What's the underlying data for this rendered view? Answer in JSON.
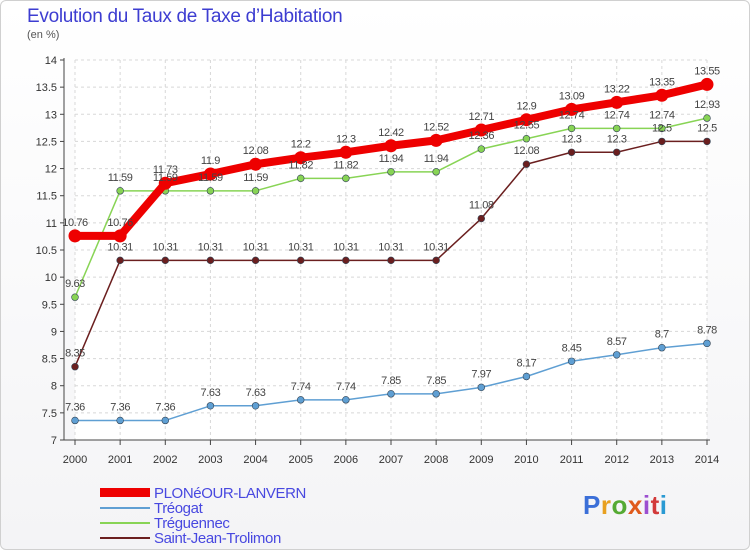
{
  "header": {
    "title": "Evolution du Taux de Taxe d’Habitation",
    "subtitle": "(en %)"
  },
  "logo": {
    "text": "Proxiti",
    "colors": [
      "#3b6fd8",
      "#e8a020",
      "#55aa33",
      "#e05a1c",
      "#9c4fd0",
      "#d23a3a",
      "#2a9ad3"
    ]
  },
  "chart_data": {
    "type": "line",
    "x": [
      2000,
      2001,
      2002,
      2003,
      2004,
      2005,
      2006,
      2007,
      2008,
      2009,
      2010,
      2011,
      2012,
      2013,
      2014
    ],
    "ylim": [
      7,
      14
    ],
    "yticks": [
      7,
      7.5,
      8,
      8.5,
      9,
      9.5,
      10,
      10.5,
      11,
      11.5,
      12,
      12.5,
      13,
      13.5,
      14
    ],
    "grid": true,
    "legend_position": "bottom-left",
    "series": [
      {
        "name": "PLONéOUR-LANVERN",
        "color": "#ee0000",
        "values": [
          10.76,
          10.76,
          11.73,
          11.9,
          12.08,
          12.2,
          12.3,
          12.42,
          12.52,
          12.71,
          12.9,
          13.09,
          13.22,
          13.35,
          13.55
        ]
      },
      {
        "name": "Tréogat",
        "color": "#5f9fd3",
        "values": [
          7.36,
          7.36,
          7.36,
          7.63,
          7.63,
          7.74,
          7.74,
          7.85,
          7.85,
          7.97,
          8.17,
          8.45,
          8.57,
          8.7,
          8.78
        ]
      },
      {
        "name": "Tréguennec",
        "color": "#88d455",
        "values": [
          9.63,
          11.59,
          11.59,
          11.59,
          11.59,
          11.82,
          11.82,
          11.94,
          11.94,
          12.36,
          12.55,
          12.74,
          12.74,
          12.74,
          12.93
        ]
      },
      {
        "name": "Saint-Jean-Trolimon",
        "color": "#6b1f1f",
        "values": [
          8.35,
          10.31,
          10.31,
          10.31,
          10.31,
          10.31,
          10.31,
          10.31,
          10.31,
          11.08,
          12.08,
          12.3,
          12.3,
          12.5,
          12.5
        ]
      }
    ]
  }
}
